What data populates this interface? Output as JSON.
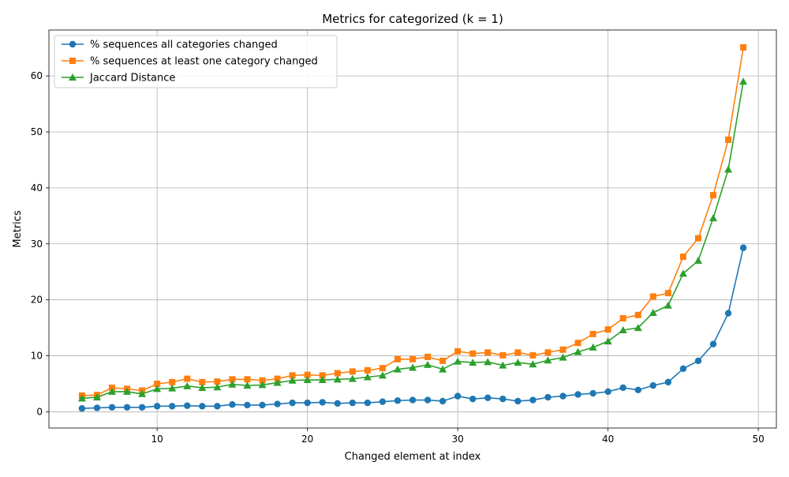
{
  "chart_data": {
    "type": "line",
    "title": "Metrics for categorized (k = 1)",
    "xlabel": "Changed element at index",
    "ylabel": "Metrics",
    "xlim": [
      2.8,
      51.2
    ],
    "ylim": [
      -2.9,
      68.2
    ],
    "xticks": [
      10,
      20,
      30,
      40,
      50
    ],
    "yticks": [
      0,
      10,
      20,
      30,
      40,
      50,
      60
    ],
    "grid": true,
    "legend_position": "upper-left",
    "x": [
      5,
      6,
      7,
      8,
      9,
      10,
      11,
      12,
      13,
      14,
      15,
      16,
      17,
      18,
      19,
      20,
      21,
      22,
      23,
      24,
      25,
      26,
      27,
      28,
      29,
      30,
      31,
      32,
      33,
      34,
      35,
      36,
      37,
      38,
      39,
      40,
      41,
      42,
      43,
      44,
      45,
      46,
      47,
      48,
      49
    ],
    "series": [
      {
        "name": "% sequences all categories changed",
        "color": "#1f77b4",
        "marker": "circle",
        "values": [
          0.6,
          0.7,
          0.8,
          0.8,
          0.8,
          1.0,
          1.0,
          1.1,
          1.0,
          1.0,
          1.3,
          1.2,
          1.2,
          1.4,
          1.6,
          1.6,
          1.7,
          1.5,
          1.6,
          1.6,
          1.8,
          2.0,
          2.1,
          2.1,
          1.9,
          2.8,
          2.3,
          2.5,
          2.3,
          1.9,
          2.1,
          2.6,
          2.8,
          3.1,
          3.3,
          3.6,
          4.3,
          3.9,
          4.7,
          5.3,
          7.7,
          9.1,
          12.1,
          17.6,
          29.3
        ]
      },
      {
        "name": "% sequences at least one category changed",
        "color": "#ff7f0e",
        "marker": "square",
        "values": [
          2.9,
          3.0,
          4.3,
          4.1,
          3.8,
          5.0,
          5.3,
          5.9,
          5.3,
          5.4,
          5.8,
          5.8,
          5.6,
          5.9,
          6.5,
          6.6,
          6.5,
          6.9,
          7.2,
          7.4,
          7.8,
          9.4,
          9.4,
          9.8,
          9.1,
          10.8,
          10.4,
          10.6,
          10.1,
          10.6,
          10.1,
          10.6,
          11.1,
          12.3,
          13.9,
          14.7,
          16.7,
          17.3,
          20.6,
          21.2,
          27.7,
          31.0,
          38.7,
          48.6,
          65.1
        ]
      },
      {
        "name": "Jaccard Distance",
        "color": "#2ca02c",
        "marker": "triangle",
        "values": [
          2.4,
          2.6,
          3.6,
          3.6,
          3.2,
          4.1,
          4.2,
          4.6,
          4.3,
          4.4,
          4.9,
          4.7,
          4.8,
          5.2,
          5.6,
          5.7,
          5.7,
          5.8,
          5.9,
          6.2,
          6.5,
          7.6,
          7.9,
          8.4,
          7.6,
          9.0,
          8.8,
          8.9,
          8.3,
          8.8,
          8.5,
          9.2,
          9.7,
          10.7,
          11.5,
          12.6,
          14.6,
          15.0,
          17.7,
          19.0,
          24.7,
          27.0,
          34.6,
          43.3,
          59.0
        ]
      }
    ]
  }
}
